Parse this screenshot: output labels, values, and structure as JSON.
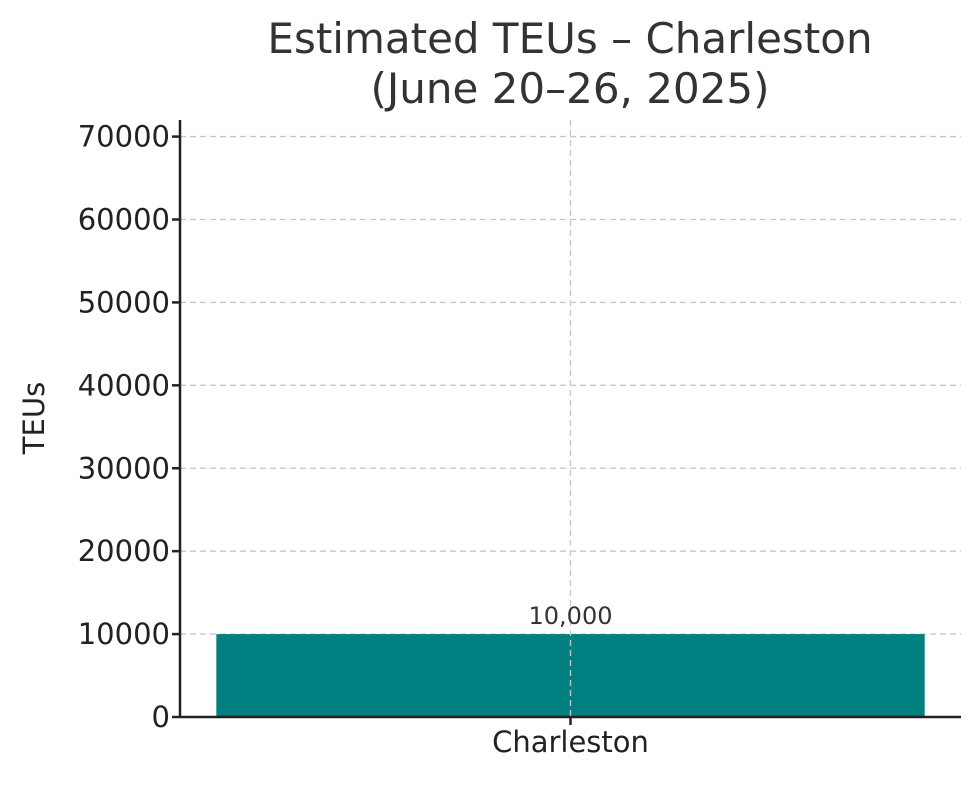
{
  "chart_data": {
    "type": "bar",
    "title_lines": [
      "Estimated TEUs – Charleston",
      "(June 20–26, 2025)"
    ],
    "xlabel": "",
    "ylabel": "TEUs",
    "categories": [
      "Charleston"
    ],
    "values": [
      10000
    ],
    "data_labels": [
      "10,000"
    ],
    "ylim": [
      0,
      72000
    ],
    "yticks": [
      0,
      10000,
      20000,
      30000,
      40000,
      50000,
      60000,
      70000
    ],
    "ytick_labels": [
      "0",
      "10000",
      "20000",
      "30000",
      "40000",
      "50000",
      "60000",
      "70000"
    ],
    "grid": true,
    "bar_color": "#008080"
  }
}
